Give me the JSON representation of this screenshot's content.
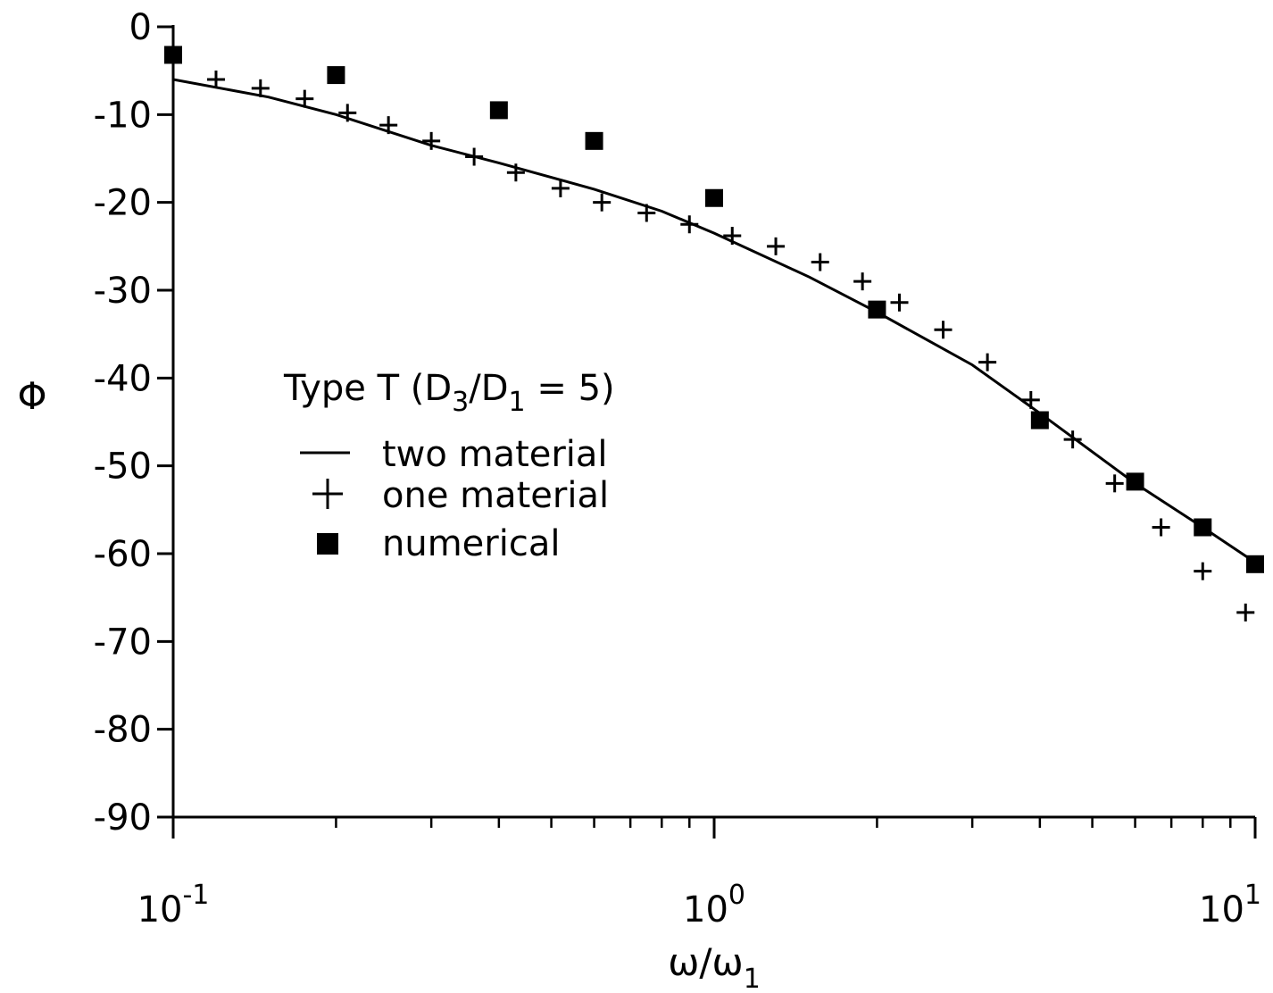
{
  "chart_data": {
    "type": "scatter",
    "xscale": "log",
    "xlim": [
      0.1,
      10
    ],
    "ylim": [
      -90,
      0
    ],
    "xlabel": "ω/ω",
    "xlabel_sub": "1",
    "ylabel": "Φ",
    "xticks": [
      {
        "value": 0.1,
        "base": "10",
        "exp": "-1"
      },
      {
        "value": 1,
        "base": "10",
        "exp": "0"
      },
      {
        "value": 10,
        "base": "10",
        "exp": "1"
      }
    ],
    "yticks": [
      0,
      -10,
      -20,
      -30,
      -40,
      -50,
      -60,
      -70,
      -80,
      -90
    ],
    "grid": false,
    "legend": {
      "position": "center-left",
      "title": {
        "prefix": "Type T (D",
        "sub1": "3",
        "mid": "/D",
        "sub2": "1",
        "suffix": " = 5)"
      },
      "entries": [
        {
          "marker": "line",
          "label": "two material"
        },
        {
          "marker": "plus",
          "label": "one material"
        },
        {
          "marker": "square",
          "label": "numerical"
        }
      ]
    },
    "series": [
      {
        "name": "two material",
        "style": "line",
        "x": [
          0.1,
          0.15,
          0.2,
          0.3,
          0.4,
          0.6,
          0.8,
          1.0,
          1.5,
          2.0,
          3.0,
          4.0,
          6.0,
          8.0,
          10.0
        ],
        "y": [
          -6,
          -8,
          -10,
          -13.5,
          -15.5,
          -18.5,
          -21,
          -23.5,
          -28.5,
          -32.5,
          -38.5,
          -44,
          -52,
          -57,
          -61
        ]
      },
      {
        "name": "one material",
        "style": "plus",
        "x": [
          0.12,
          0.145,
          0.175,
          0.21,
          0.25,
          0.3,
          0.36,
          0.43,
          0.52,
          0.62,
          0.75,
          0.9,
          1.08,
          1.3,
          1.57,
          1.88,
          2.2,
          2.65,
          3.2,
          3.85,
          4.6,
          5.5,
          6.7,
          8.0,
          9.6
        ],
        "y": [
          -6,
          -7,
          -8.2,
          -9.8,
          -11.2,
          -13,
          -14.8,
          -16.6,
          -18.4,
          -20,
          -21.2,
          -22.5,
          -23.8,
          -25,
          -26.8,
          -29,
          -31.4,
          -34.5,
          -38.2,
          -42.5,
          -47,
          -52,
          -57,
          -62,
          -66.7
        ]
      },
      {
        "name": "numerical",
        "style": "square",
        "x": [
          0.1,
          0.2,
          0.4,
          0.6,
          1.0,
          2.0,
          4.0,
          6.0,
          8.0,
          10.0
        ],
        "y": [
          -3.2,
          -5.5,
          -9.5,
          -13,
          -19.5,
          -32.2,
          -44.8,
          -51.8,
          -57,
          -61.2
        ]
      }
    ]
  }
}
